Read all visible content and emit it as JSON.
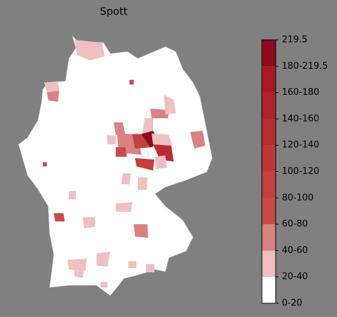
{
  "chart_data": {
    "type": "choropleth",
    "title": "Spott",
    "colorbar": {
      "colors": [
        "#ffffff",
        "#efc0c0",
        "#d98282",
        "#c94a4a",
        "#c44040",
        "#bf3638",
        "#b92c32",
        "#b2222c",
        "#aa1826",
        "#8e0a1e"
      ],
      "ticks": [
        {
          "value": 0,
          "label": "0-20"
        },
        {
          "value": 20,
          "label": "20-40"
        },
        {
          "value": 40,
          "label": "40-60"
        },
        {
          "value": 60,
          "label": "60-80"
        },
        {
          "value": 80,
          "label": "80-100"
        },
        {
          "value": 100,
          "label": "100-120"
        },
        {
          "value": 120,
          "label": "120-140"
        },
        {
          "value": 140,
          "label": "140-160"
        },
        {
          "value": 160,
          "label": "160-180"
        },
        {
          "value": 180,
          "label": "180-219.5"
        },
        219.5
      ]
    }
  }
}
